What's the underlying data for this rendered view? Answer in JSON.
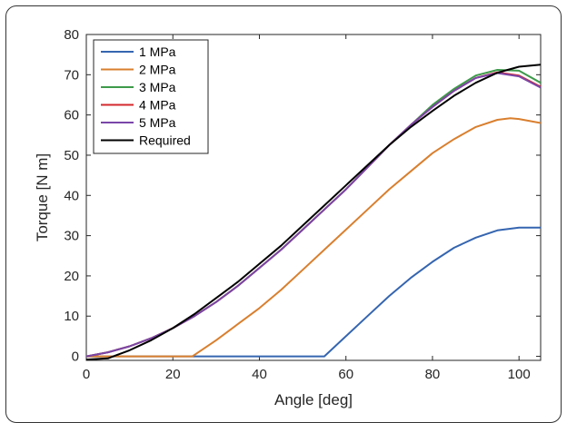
{
  "chart_data": {
    "type": "line",
    "title": "",
    "xlabel": "Angle [deg]",
    "ylabel": "Torque [N m]",
    "xlim": [
      0,
      105
    ],
    "ylim": [
      -1,
      80
    ],
    "xticks": [
      0,
      20,
      40,
      60,
      80,
      100
    ],
    "yticks": [
      0,
      10,
      20,
      30,
      40,
      50,
      60,
      70,
      80
    ],
    "xtick_labels": [
      "0",
      "20",
      "40",
      "60",
      "80",
      "100"
    ],
    "ytick_labels": [
      "0",
      "10",
      "20",
      "30",
      "40",
      "50",
      "60",
      "70",
      "80"
    ],
    "grid": false,
    "legend_position": "top-left",
    "series": [
      {
        "name": "1 MPa",
        "color": "#3565b0",
        "x": [
          0,
          10,
          20,
          30,
          40,
          50,
          55,
          60,
          65,
          70,
          75,
          80,
          85,
          90,
          95,
          100,
          105
        ],
        "y": [
          0,
          0,
          0,
          0,
          0,
          0,
          0,
          5,
          10,
          15,
          19.5,
          23.5,
          27,
          29.5,
          31.3,
          32,
          32
        ]
      },
      {
        "name": "2 MPa",
        "color": "#d97f2e",
        "x": [
          0,
          10,
          20,
          24.5,
          30,
          35,
          40,
          45,
          50,
          55,
          60,
          65,
          70,
          75,
          80,
          85,
          90,
          95,
          98,
          100,
          105
        ],
        "y": [
          0,
          0,
          0,
          0,
          4,
          8,
          12,
          16.5,
          21.5,
          26.5,
          31.5,
          36.5,
          41.5,
          46,
          50.5,
          54,
          57,
          58.8,
          59.2,
          59,
          58
        ]
      },
      {
        "name": "3 MPa",
        "color": "#3d9a4a",
        "x": [
          0,
          5,
          10,
          15,
          20,
          25,
          30,
          35,
          40,
          45,
          50,
          55,
          60,
          65,
          70,
          75,
          80,
          85,
          90,
          95,
          100,
          105
        ],
        "y": [
          0,
          1,
          2.5,
          4.5,
          7,
          10,
          13.5,
          17.5,
          22,
          26.5,
          31.5,
          36.5,
          41.5,
          47,
          52.5,
          57.5,
          62.5,
          66.5,
          69.8,
          71.2,
          71,
          68
        ]
      },
      {
        "name": "4 MPa",
        "color": "#d4282d",
        "x": [
          0,
          5,
          10,
          15,
          20,
          25,
          30,
          35,
          40,
          45,
          50,
          55,
          60,
          65,
          70,
          75,
          80,
          85,
          90,
          95,
          100,
          105
        ],
        "y": [
          0,
          1,
          2.5,
          4.5,
          7,
          10,
          13.5,
          17.5,
          22,
          26.5,
          31.5,
          36.5,
          41.5,
          47,
          52.5,
          57.5,
          62,
          66,
          69.2,
          70.6,
          69.8,
          67
        ]
      },
      {
        "name": "5 MPa",
        "color": "#7a46a8",
        "x": [
          0,
          5,
          10,
          15,
          20,
          25,
          30,
          35,
          40,
          45,
          50,
          55,
          60,
          65,
          70,
          75,
          80,
          85,
          90,
          95,
          100,
          105
        ],
        "y": [
          0,
          1,
          2.5,
          4.5,
          7,
          10,
          13.5,
          17.5,
          22,
          26.5,
          31.5,
          36.5,
          41.5,
          47,
          52.5,
          57.5,
          62,
          66,
          69.2,
          70.4,
          69.6,
          66.8
        ]
      },
      {
        "name": "Required",
        "color": "#000000",
        "x": [
          0,
          5,
          10,
          15,
          20,
          25,
          30,
          35,
          40,
          45,
          50,
          55,
          60,
          65,
          70,
          75,
          80,
          85,
          90,
          95,
          100,
          105
        ],
        "y": [
          -0.8,
          -0.5,
          1.5,
          4,
          7,
          10.5,
          14.5,
          18.5,
          23,
          27.5,
          32.5,
          37.5,
          42.5,
          47.5,
          52.5,
          57,
          61,
          64.8,
          68,
          70.5,
          72,
          72.5
        ]
      }
    ]
  }
}
